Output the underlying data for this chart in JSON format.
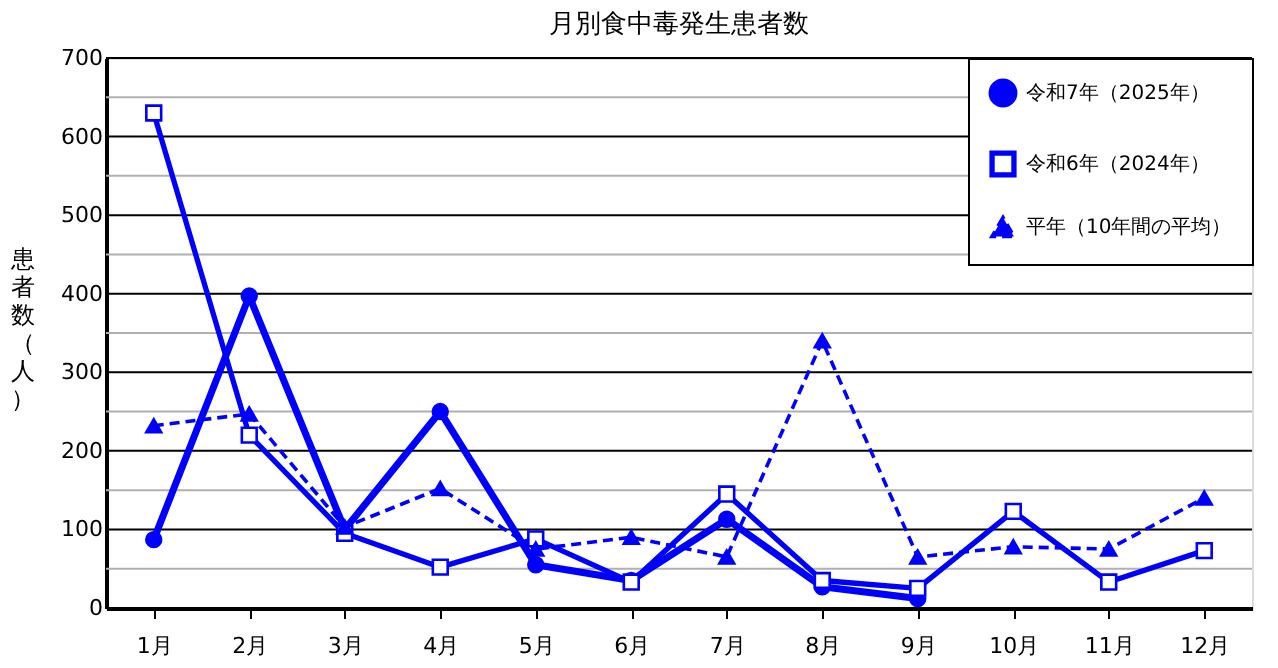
{
  "chart_data": {
    "type": "line",
    "title": "月別食中毒発生患者数",
    "ylabel": "患者数（人）",
    "categories": [
      "1月",
      "2月",
      "3月",
      "4月",
      "5月",
      "6月",
      "7月",
      "8月",
      "9月",
      "10月",
      "11月",
      "12月"
    ],
    "series": [
      {
        "name": "令和7年（2025年）",
        "color": "#0000ff",
        "marker": "circle",
        "line_style": "solid",
        "values": [
          87,
          397,
          100,
          250,
          55,
          35,
          113,
          27,
          12,
          null,
          null,
          null
        ]
      },
      {
        "name": "令和6年（2024年）",
        "color": "#0000ff",
        "marker": "square",
        "line_style": "solid",
        "values": [
          630,
          220,
          95,
          52,
          88,
          33,
          145,
          35,
          25,
          123,
          33,
          73
        ]
      },
      {
        "name": "平年（10年間の平均）",
        "color": "#0000ff",
        "marker": "triangle",
        "line_style": "dashed",
        "values": [
          232,
          247,
          103,
          152,
          75,
          90,
          65,
          340,
          65,
          78,
          75,
          140
        ]
      }
    ],
    "ylim": [
      0,
      700
    ],
    "yticks": [
      0,
      {
        "value": 50,
        "label": null
      },
      100,
      {
        "value": 150,
        "label": null
      },
      200,
      {
        "value": 250,
        "label": null
      },
      300,
      {
        "value": 350,
        "label": null
      },
      400,
      {
        "value": 450,
        "label": null
      },
      500,
      {
        "value": 550,
        "label": null
      },
      600,
      {
        "value": 650,
        "label": null
      },
      700
    ],
    "grid": true,
    "legend": "top right"
  }
}
